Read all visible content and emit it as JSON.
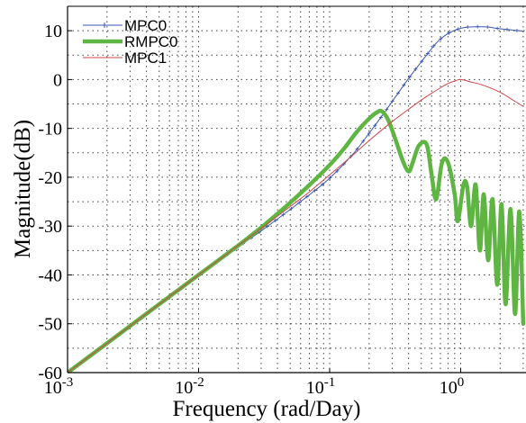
{
  "chart_data": {
    "type": "line",
    "xscale": "log",
    "xlim": [
      0.001,
      3
    ],
    "ylim": [
      -60,
      15
    ],
    "grid": true,
    "legend_position": "top-left",
    "xlabel": "Frequency  (rad/Day)",
    "ylabel": "Magnitude(dB)",
    "x_ticks": [
      {
        "value": 0.001,
        "base": "10",
        "exp": "-3"
      },
      {
        "value": 0.01,
        "base": "10",
        "exp": "-2"
      },
      {
        "value": 0.1,
        "base": "10",
        "exp": "-1"
      },
      {
        "value": 1,
        "base": "10",
        "exp": "0"
      }
    ],
    "y_ticks": [
      10,
      0,
      -10,
      -20,
      -30,
      -40,
      -50,
      -60
    ],
    "series": [
      {
        "name": "MPC0",
        "color": "#3a56b0",
        "marker": "plus",
        "x": [
          0.001,
          0.002,
          0.005,
          0.01,
          0.02,
          0.03,
          0.05,
          0.07,
          0.1,
          0.15,
          0.2,
          0.25,
          0.3,
          0.4,
          0.5,
          0.7,
          1.0,
          1.5,
          2.0,
          3.0
        ],
        "y": [
          -60,
          -54,
          -46,
          -40,
          -34.3,
          -31,
          -26.6,
          -23.6,
          -20.2,
          -15.3,
          -11,
          -7.5,
          -4.5,
          0.2,
          3.6,
          8.3,
          10.5,
          10.8,
          10.4,
          9.9
        ]
      },
      {
        "name": "RMPC0",
        "color": "#5fb541",
        "x": [
          0.001,
          0.002,
          0.005,
          0.01,
          0.02,
          0.03,
          0.05,
          0.07,
          0.1,
          0.13,
          0.16,
          0.2,
          0.23,
          0.25,
          0.28,
          0.32,
          0.36,
          0.4,
          0.43,
          0.48,
          0.55,
          0.6,
          0.65,
          0.72,
          0.8,
          0.9,
          0.95,
          1.05,
          1.12,
          1.2,
          1.3,
          1.4,
          1.5,
          1.62,
          1.75,
          1.9,
          2.05,
          2.2,
          2.4,
          2.6,
          2.8,
          3.0
        ],
        "y": [
          -60,
          -54,
          -46,
          -40,
          -34,
          -30.3,
          -25.2,
          -21.6,
          -17.5,
          -14,
          -10.8,
          -8,
          -6.7,
          -6.5,
          -8.3,
          -12.5,
          -16.5,
          -18.8,
          -17,
          -13.5,
          -13.3,
          -19.5,
          -24.5,
          -17,
          -17,
          -23.5,
          -29,
          -21.5,
          -22,
          -30,
          -21.5,
          -35,
          -23.5,
          -37,
          -24.5,
          -42,
          -25.5,
          -46,
          -26.5,
          -48,
          -27,
          -50
        ]
      },
      {
        "name": "MPC1",
        "color": "#d2474a",
        "x": [
          0.001,
          0.002,
          0.005,
          0.01,
          0.02,
          0.03,
          0.05,
          0.07,
          0.1,
          0.15,
          0.2,
          0.3,
          0.4,
          0.5,
          0.6,
          0.7,
          0.8,
          0.9,
          1.0,
          1.2,
          1.5,
          2.0,
          2.5,
          3.0
        ],
        "y": [
          -60,
          -54,
          -46,
          -40,
          -34,
          -30.5,
          -26,
          -23,
          -19.5,
          -15.5,
          -12.5,
          -8.6,
          -6.1,
          -4.2,
          -2.8,
          -1.7,
          -0.8,
          -0.3,
          0,
          -0.5,
          -1.2,
          -2.6,
          -4.2,
          -5.5
        ]
      }
    ]
  }
}
